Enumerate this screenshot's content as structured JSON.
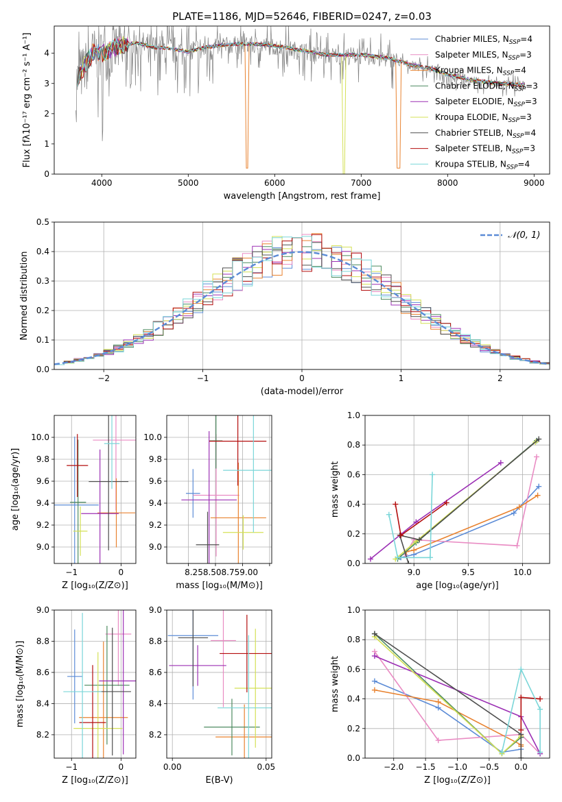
{
  "title": "PLATE=1186, MJD=52646, FIBERID=0247, z=0.03",
  "colors": {
    "Chabrier MILES": "#5b8bd6",
    "Salpeter MILES": "#e98bc3",
    "Kroupa MILES": "#e8822f",
    "Chabrier ELODIE": "#4c8a5f",
    "Salpeter ELODIE": "#9b2fb4",
    "Kroupa ELODIE": "#d4e055",
    "Chabrier STELIB": "#4d4d4d",
    "Salpeter STELIB": "#b30d0d",
    "Kroupa STELIB": "#7ad6d8",
    "data": "#808080",
    "gaussian": "#5b8bd6"
  },
  "chart_data": [
    {
      "id": "spectrum",
      "type": "line",
      "title": "PLATE=1186, MJD=52646, FIBERID=0247, z=0.03",
      "xlabel": "wavelength [Angstrom, rest frame]",
      "ylabel": "Flux [fλ10⁻¹⁷ erg cm⁻² s⁻¹ A⁻¹]",
      "xlim": [
        3450,
        9180
      ],
      "ylim": [
        0,
        4.9
      ],
      "xticks": [
        4000,
        5000,
        6000,
        7000,
        8000,
        9000
      ],
      "yticks": [
        0,
        1,
        2,
        3,
        4
      ],
      "legend_position": "upper-right",
      "legend": [
        {
          "name": "Chabrier MILES",
          "nssp": "4"
        },
        {
          "name": "Salpeter MILES",
          "nssp": "3"
        },
        {
          "name": "Kroupa MILES",
          "nssp": "4"
        },
        {
          "name": "Chabrier ELODIE",
          "nssp": "3"
        },
        {
          "name": "Salpeter ELODIE",
          "nssp": "3"
        },
        {
          "name": "Kroupa ELODIE",
          "nssp": "3"
        },
        {
          "name": "Chabrier STELIB",
          "nssp": "4"
        },
        {
          "name": "Salpeter STELIB",
          "nssp": "3"
        },
        {
          "name": "Kroupa STELIB",
          "nssp": "4"
        }
      ],
      "continuum": {
        "x": [
          3700,
          3900,
          4000,
          4200,
          4400,
          4600,
          4800,
          5000,
          5200,
          5500,
          5800,
          6000,
          6300,
          6600,
          7000,
          7300,
          7600,
          7800,
          8000,
          8300,
          8600,
          8900
        ],
        "y": [
          3.1,
          4.05,
          4.0,
          4.25,
          4.35,
          4.2,
          4.15,
          4.05,
          4.2,
          4.3,
          4.3,
          4.25,
          4.1,
          3.95,
          3.95,
          3.85,
          3.6,
          3.5,
          3.3,
          3.1,
          3.0,
          2.95
        ]
      }
    },
    {
      "id": "residuals",
      "type": "step",
      "xlabel": "(data-model)/error",
      "ylabel": "Normed distribution",
      "xlim": [
        -2.5,
        2.5
      ],
      "ylim": [
        0,
        0.5
      ],
      "xticks": [
        -2,
        -1,
        0,
        1,
        2
      ],
      "yticks": [
        0.0,
        0.1,
        0.2,
        0.3,
        0.4,
        0.5
      ],
      "grid": true,
      "legend_position": "upper-right",
      "reference_curve": "𝒩(0, 1)",
      "bin_width": 0.1
    },
    {
      "id": "z-age",
      "type": "errorbar",
      "xlabel": "Z [log₁₀(Z/Z⊙)]",
      "ylabel": "age  [log₁₀(age/yr)]",
      "xlim": [
        -1.35,
        0.3
      ],
      "ylim": [
        8.85,
        10.2
      ],
      "xticks": [
        -1,
        0
      ],
      "yticks": [
        9.0,
        9.2,
        9.4,
        9.6,
        9.8,
        10.0
      ],
      "grid": true
    },
    {
      "id": "mass-age",
      "type": "errorbar",
      "xlabel": "mass [log₁₀(M/M⊙)]",
      "ylabel": "",
      "xlim": [
        8.05,
        9.02
      ],
      "ylim": [
        8.85,
        10.2
      ],
      "xticks": [
        8.25,
        8.5,
        8.75,
        9.0
      ],
      "xticklabels": "8.258.508.759.00",
      "yticks": [
        9.0,
        9.2,
        9.4,
        9.6,
        9.8,
        10.0
      ],
      "grid": true
    },
    {
      "id": "age-weight",
      "type": "line",
      "xlabel": "age  [log₁₀(age/yr)]",
      "ylabel": "mass weight",
      "xlim": [
        8.55,
        10.25
      ],
      "ylim": [
        0,
        1.0
      ],
      "xticks": [
        9.0,
        9.5,
        10.0
      ],
      "yticks": [
        0.0,
        0.2,
        0.4,
        0.6,
        0.8,
        1.0
      ],
      "grid": true,
      "series": [
        {
          "name": "Chabrier MILES",
          "x": [
            8.88,
            9.0,
            9.92,
            10.15
          ],
          "y": [
            0.04,
            0.06,
            0.34,
            0.52
          ]
        },
        {
          "name": "Salpeter MILES",
          "x": [
            8.92,
            9.0,
            9.95,
            10.13
          ],
          "y": [
            0.06,
            0.16,
            0.12,
            0.72
          ]
        },
        {
          "name": "Kroupa MILES",
          "x": [
            8.93,
            9.0,
            9.97,
            10.14
          ],
          "y": [
            0.08,
            0.09,
            0.38,
            0.46
          ]
        },
        {
          "name": "Chabrier ELODIE",
          "x": [
            8.85,
            9.02,
            10.13
          ],
          "y": [
            0.03,
            0.14,
            0.83
          ]
        },
        {
          "name": "Salpeter ELODIE",
          "x": [
            8.6,
            9.02,
            9.8
          ],
          "y": [
            0.03,
            0.28,
            0.68
          ]
        },
        {
          "name": "Kroupa ELODIE",
          "x": [
            8.83,
            9.02,
            10.12
          ],
          "y": [
            0.03,
            0.15,
            0.82
          ]
        },
        {
          "name": "Chabrier STELIB",
          "x": [
            8.95,
            8.87,
            9.05,
            10.15
          ],
          "y": [
            0.0,
            0.19,
            0.16,
            0.84
          ]
        },
        {
          "name": "Salpeter STELIB",
          "x": [
            8.83,
            8.88,
            9.3
          ],
          "y": [
            0.4,
            0.19,
            0.41
          ]
        },
        {
          "name": "Kroupa STELIB",
          "x": [
            8.77,
            8.85,
            9.15,
            9.17
          ],
          "y": [
            0.33,
            0.04,
            0.04,
            0.6
          ]
        }
      ]
    },
    {
      "id": "z-mass",
      "type": "errorbar",
      "xlabel": "Z [log₁₀(Z/Z⊙)]",
      "ylabel": "mass [log₁₀(M/M⊙)]",
      "xlim": [
        -1.35,
        0.3
      ],
      "ylim": [
        8.05,
        9.0
      ],
      "xticks": [
        -1,
        0
      ],
      "yticks": [
        8.2,
        8.4,
        8.6,
        8.8,
        9.0
      ],
      "grid": true
    },
    {
      "id": "ebv-mass",
      "type": "errorbar",
      "xlabel": "E(B-V)",
      "ylabel": "",
      "xlim": [
        -0.003,
        0.053
      ],
      "ylim": [
        8.05,
        9.0
      ],
      "xticks": [
        0.0,
        0.05
      ],
      "yticks": [
        8.2,
        8.4,
        8.6,
        8.8,
        9.0
      ],
      "grid": true
    },
    {
      "id": "z-weight",
      "type": "line",
      "xlabel": "Z [log₁₀(Z/Z⊙)]",
      "ylabel": "mass weight",
      "xlim": [
        -2.45,
        0.45
      ],
      "ylim": [
        0,
        1.0
      ],
      "xticks": [
        -2.0,
        -1.5,
        -1.0,
        -0.5,
        0.0
      ],
      "yticks": [
        0.0,
        0.2,
        0.4,
        0.6,
        0.8,
        1.0
      ],
      "grid": true,
      "series": [
        {
          "name": "Chabrier MILES",
          "x": [
            -2.3,
            -1.3,
            -0.3,
            0.0
          ],
          "y": [
            0.52,
            0.34,
            0.04,
            0.06
          ]
        },
        {
          "name": "Salpeter MILES",
          "x": [
            -2.3,
            -1.3,
            0.0,
            0.3
          ],
          "y": [
            0.72,
            0.12,
            0.16,
            0.03
          ]
        },
        {
          "name": "Kroupa MILES",
          "x": [
            -2.3,
            -1.3,
            0.0,
            0.0
          ],
          "y": [
            0.46,
            0.38,
            0.09,
            0.08
          ]
        },
        {
          "name": "Chabrier ELODIE",
          "x": [
            -2.3,
            -0.3,
            0.0
          ],
          "y": [
            0.84,
            0.03,
            0.14
          ]
        },
        {
          "name": "Salpeter ELODIE",
          "x": [
            -2.3,
            0.0,
            0.3
          ],
          "y": [
            0.69,
            0.28,
            0.03
          ]
        },
        {
          "name": "Kroupa ELODIE",
          "x": [
            -2.3,
            -0.3,
            0.0
          ],
          "y": [
            0.82,
            0.03,
            0.15
          ]
        },
        {
          "name": "Chabrier STELIB",
          "x": [
            -2.3,
            0.0,
            0.0
          ],
          "y": [
            0.84,
            0.16,
            0.0
          ]
        },
        {
          "name": "Salpeter STELIB",
          "x": [
            0.0,
            0.0,
            0.3
          ],
          "y": [
            0.19,
            0.41,
            0.4
          ]
        },
        {
          "name": "Kroupa STELIB",
          "x": [
            -0.3,
            0.0,
            0.3,
            0.3
          ],
          "y": [
            0.04,
            0.6,
            0.33,
            0.04
          ]
        }
      ]
    }
  ]
}
